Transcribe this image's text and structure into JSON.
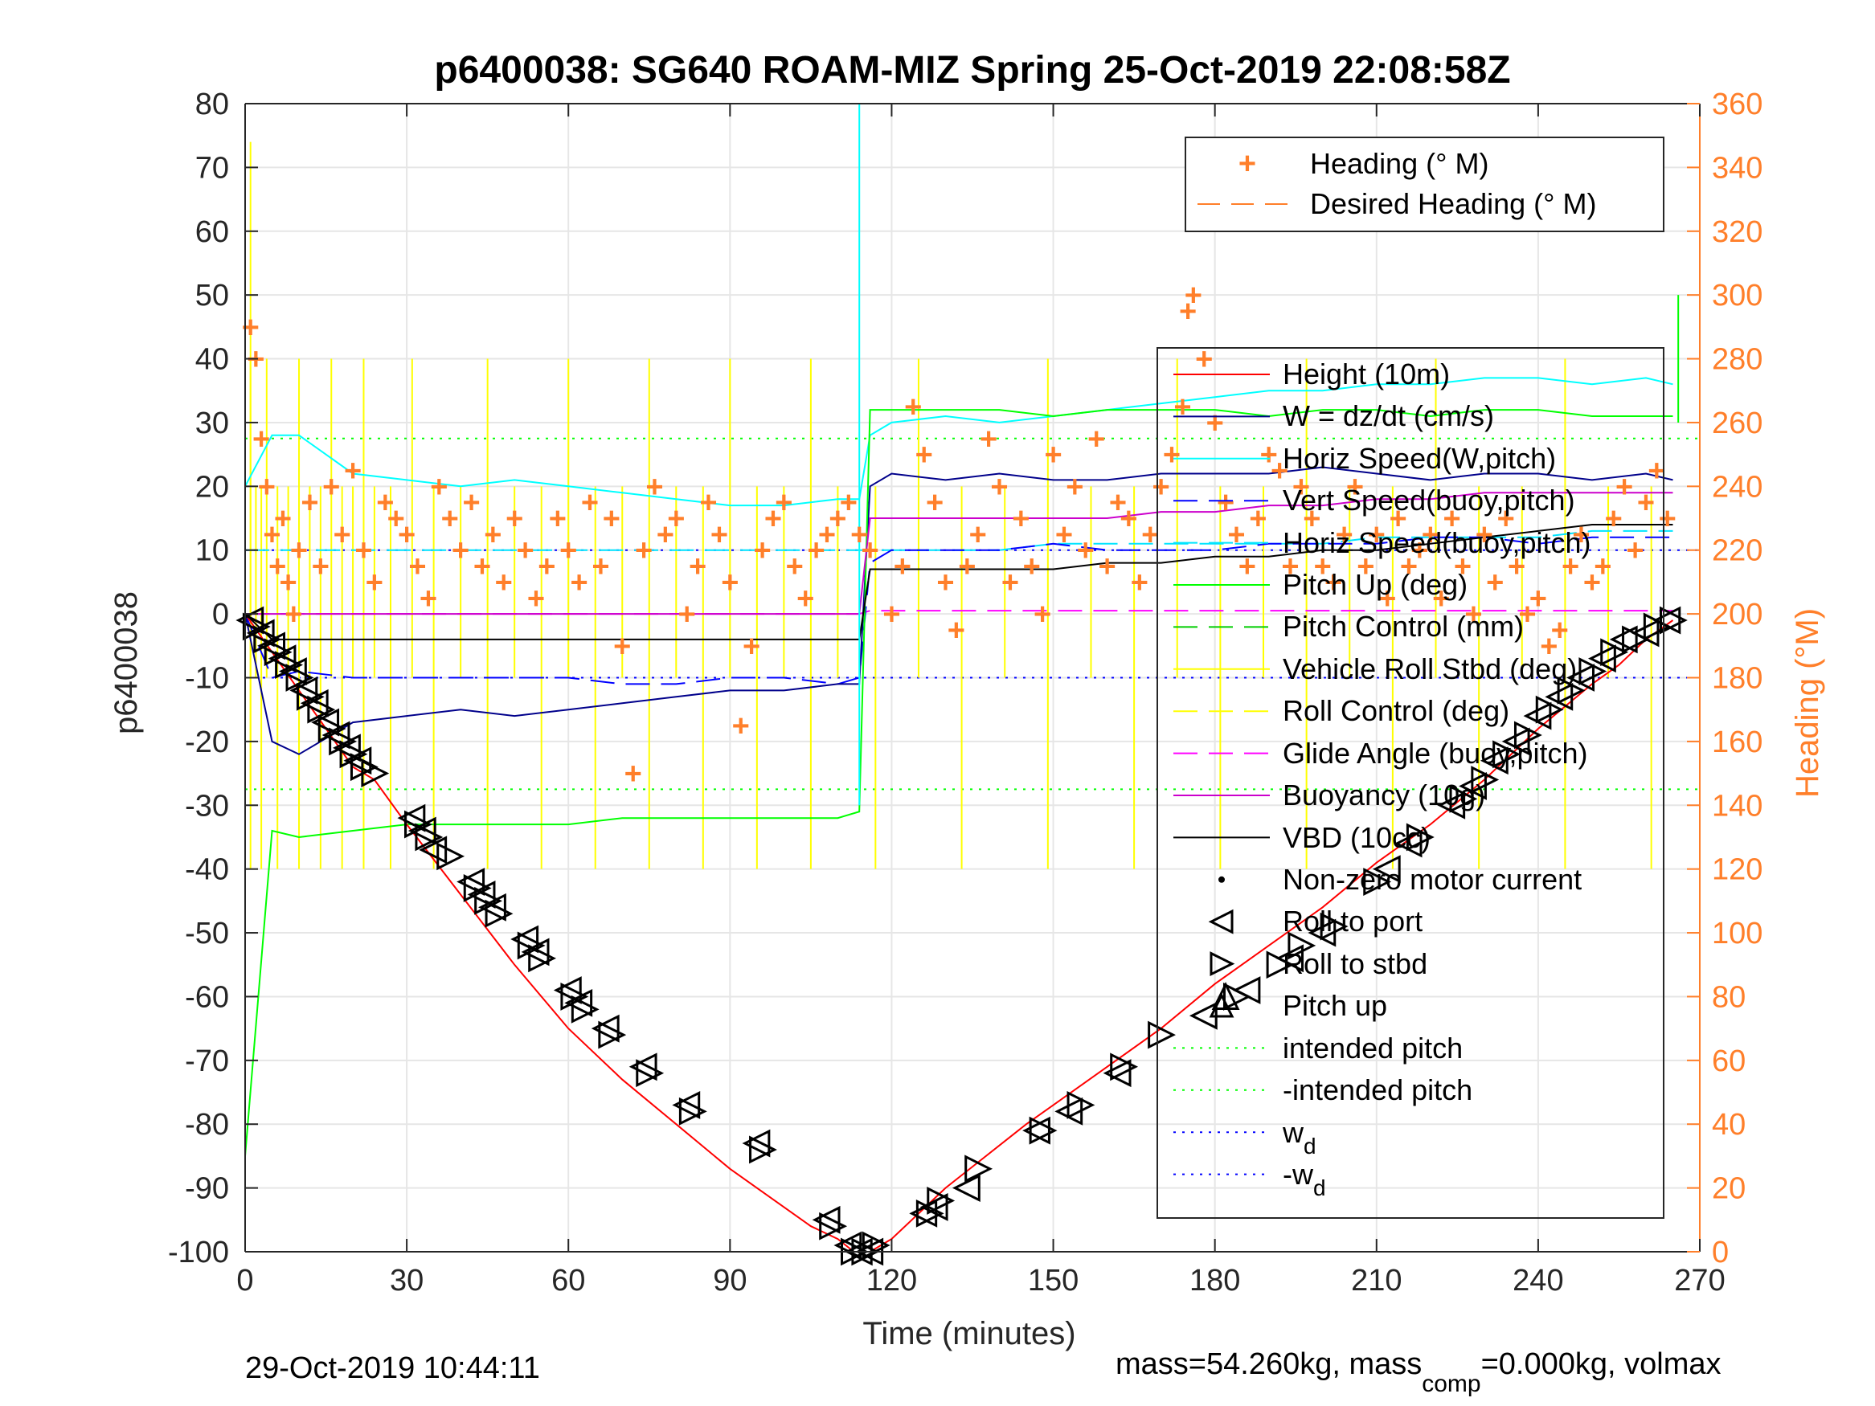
{
  "figure": {
    "title": "p6400038: SG640 ROAM-MIZ Spring 25-Oct-2019 22:08:58Z",
    "footer_left": "29-Oct-2019 10:44:11",
    "footer_right_prefix": "mass=54.260kg, mass",
    "footer_right_sub": "comp",
    "footer_right_suffix": "=0.000kg, volmax"
  },
  "colors": {
    "height": "#ff0000",
    "w": "#00008b",
    "horiz_speed_w": "#00ffff",
    "vert_speed_buoy": "#0000ff",
    "horiz_speed_buoy": "#00e5ff",
    "pitch_up": "#00ff00",
    "pitch_control": "#00cc00",
    "roll": "#ffff00",
    "roll_control": "#ffff00",
    "glide_angle": "#ff00ff",
    "buoyancy": "#cc00cc",
    "vbd": "#000000",
    "heading": "#ff7f2a",
    "grid": "#e6e6e6"
  },
  "chart_data": {
    "type": "line",
    "xlabel": "Time (minutes)",
    "ylabel": "p6400038",
    "y2label": "Heading (°M)",
    "xlim": [
      0,
      270
    ],
    "ylim": [
      -100,
      80
    ],
    "y2lim": [
      0,
      360
    ],
    "xticks": [
      0,
      30,
      60,
      90,
      120,
      150,
      180,
      210,
      240,
      270
    ],
    "yticks": [
      -100,
      -90,
      -80,
      -70,
      -60,
      -50,
      -40,
      -30,
      -20,
      -10,
      0,
      10,
      20,
      30,
      40,
      50,
      60,
      70,
      80
    ],
    "y2ticks": [
      0,
      20,
      40,
      60,
      80,
      100,
      120,
      140,
      160,
      180,
      200,
      220,
      240,
      260,
      280,
      300,
      320,
      340,
      360
    ],
    "grid": true,
    "legend_heading": [
      {
        "label": "Heading (° M)"
      },
      {
        "label": "Desired Heading (° M)"
      }
    ],
    "legend_main": [
      {
        "label": "Height (10m)"
      },
      {
        "label": "W = dz/dt (cm/s)"
      },
      {
        "label": "Horiz Speed(W,pitch)"
      },
      {
        "label": "Vert Speed(buoy,pitch)"
      },
      {
        "label": "Horiz Speed(buoy,pitch)"
      },
      {
        "label": "Pitch Up (deg)"
      },
      {
        "label": "Pitch Control (mm)"
      },
      {
        "label": "Vehicle Roll Stbd (deg)"
      },
      {
        "label": "Roll Control (deg)"
      },
      {
        "label": "Glide Angle (buoy,pitch)"
      },
      {
        "label": "Buoyancy (10g)"
      },
      {
        "label": "VBD (10cc)"
      },
      {
        "label": "Non-zero motor current"
      },
      {
        "label": "Roll to port"
      },
      {
        "label": "Roll to stbd"
      },
      {
        "label": "Pitch up"
      },
      {
        "label": "intended pitch"
      },
      {
        "label": "-intended pitch"
      },
      {
        "label": "w",
        "sub": "d"
      },
      {
        "label": "-w",
        "sub": "d"
      }
    ],
    "reference_lines": {
      "intended_pitch": 27.5,
      "neg_intended_pitch": -27.5,
      "wd": 10,
      "neg_wd": -10
    },
    "height": {
      "x": [
        0,
        5,
        10,
        15,
        20,
        24,
        30,
        40,
        50,
        60,
        70,
        80,
        90,
        100,
        105,
        110,
        113,
        116,
        120,
        125,
        130,
        136,
        145,
        150,
        160,
        170,
        180,
        190,
        200,
        210,
        220,
        230,
        240,
        250,
        255,
        260,
        265
      ],
      "y": [
        0,
        -6,
        -12,
        -18,
        -24,
        -26,
        -33,
        -44,
        -55,
        -65,
        -73,
        -80,
        -87,
        -93,
        -96,
        -98,
        -100,
        -100,
        -98,
        -94,
        -90,
        -86,
        -80,
        -77,
        -71,
        -65,
        -58,
        -52,
        -46,
        -39,
        -33,
        -26,
        -18,
        -11,
        -8,
        -4,
        -1
      ]
    },
    "roll_port_markers": {
      "x": [
        1,
        3,
        5,
        7,
        9,
        11,
        13,
        15,
        17,
        19,
        21,
        31,
        33,
        35,
        42,
        44,
        46,
        52,
        54,
        60,
        62,
        67,
        74,
        82,
        95,
        108,
        112,
        114,
        116,
        126,
        128,
        134,
        147,
        153,
        162,
        178,
        186,
        194,
        200,
        212,
        216,
        224,
        228,
        232,
        236,
        240,
        244,
        248,
        252,
        256,
        260,
        264
      ],
      "y": [
        -1,
        -3,
        -5,
        -7,
        -9,
        -12,
        -14,
        -17,
        -19,
        -21,
        -23,
        -32,
        -34,
        -37,
        -42,
        -44,
        -46,
        -51,
        -53,
        -59,
        -61,
        -65,
        -71,
        -77,
        -83,
        -95,
        -99,
        -100,
        -100,
        -94,
        -93,
        -90,
        -81,
        -78,
        -72,
        -63,
        -59,
        -54,
        -50,
        -40,
        -36,
        -30,
        -27,
        -23,
        -20,
        -16,
        -13,
        -10,
        -7,
        -4,
        -3,
        -1
      ]
    },
    "roll_stbd_markers": {
      "x": [
        2,
        4,
        6,
        8,
        10,
        12,
        14,
        16,
        18,
        20,
        22,
        24,
        32,
        34,
        38,
        43,
        45,
        47,
        53,
        55,
        61,
        63,
        68,
        75,
        83,
        96,
        109,
        113,
        115,
        117,
        127,
        129,
        136,
        148,
        155,
        163,
        170,
        184,
        192,
        196,
        202,
        210,
        218,
        226,
        230,
        234,
        238,
        242,
        246,
        250,
        254,
        258,
        262,
        265
      ],
      "y": [
        -2,
        -4,
        -6,
        -8,
        -10,
        -13,
        -15,
        -18,
        -20,
        -22,
        -24,
        -25,
        -33,
        -35,
        -38,
        -43,
        -45,
        -47,
        -52,
        -54,
        -60,
        -62,
        -66,
        -72,
        -78,
        -84,
        -96,
        -100,
        -100,
        -99,
        -94,
        -92,
        -87,
        -81,
        -77,
        -71,
        -66,
        -60,
        -55,
        -52,
        -49,
        -42,
        -35,
        -29,
        -26,
        -22,
        -19,
        -15,
        -12,
        -9,
        -6,
        -4,
        -2,
        -1
      ]
    },
    "pitch_up_markers": {
      "x": [
        182
      ],
      "y": [
        -60
      ]
    },
    "heading_points": {
      "x": [
        1,
        2,
        3,
        4,
        5,
        6,
        7,
        8,
        9,
        10,
        12,
        14,
        16,
        18,
        20,
        22,
        24,
        26,
        28,
        30,
        32,
        34,
        36,
        38,
        40,
        42,
        44,
        46,
        48,
        50,
        52,
        54,
        56,
        58,
        60,
        62,
        64,
        66,
        68,
        70,
        72,
        74,
        76,
        78,
        80,
        82,
        84,
        86,
        88,
        90,
        92,
        94,
        96,
        98,
        100,
        102,
        104,
        106,
        108,
        110,
        112,
        114,
        116,
        120,
        122,
        124,
        126,
        128,
        130,
        132,
        134,
        136,
        138,
        140,
        142,
        144,
        146,
        148,
        150,
        152,
        154,
        156,
        158,
        160,
        162,
        164,
        166,
        168,
        170,
        172,
        174,
        175,
        176,
        178,
        180,
        182,
        184,
        186,
        188,
        190,
        192,
        194,
        196,
        198,
        200,
        202,
        204,
        206,
        208,
        210,
        212,
        214,
        216,
        218,
        220,
        222,
        224,
        226,
        228,
        230,
        232,
        234,
        236,
        238,
        240,
        242,
        244,
        246,
        248,
        250,
        252,
        254,
        256,
        258,
        260,
        262,
        264
      ],
      "y": [
        290,
        280,
        255,
        240,
        225,
        215,
        230,
        210,
        200,
        220,
        235,
        215,
        240,
        225,
        245,
        220,
        210,
        235,
        230,
        225,
        215,
        205,
        240,
        230,
        220,
        235,
        215,
        225,
        210,
        230,
        220,
        205,
        215,
        230,
        220,
        210,
        235,
        215,
        230,
        190,
        150,
        220,
        240,
        225,
        230,
        200,
        215,
        235,
        225,
        210,
        165,
        190,
        220,
        230,
        235,
        215,
        205,
        220,
        225,
        230,
        235,
        225,
        220,
        200,
        215,
        265,
        250,
        235,
        210,
        195,
        215,
        225,
        255,
        240,
        210,
        230,
        215,
        200,
        250,
        225,
        240,
        220,
        255,
        215,
        235,
        230,
        210,
        225,
        240,
        250,
        265,
        295,
        300,
        280,
        260,
        235,
        225,
        215,
        230,
        250,
        245,
        215,
        240,
        230,
        215,
        210,
        225,
        240,
        215,
        225,
        205,
        230,
        215,
        220,
        225,
        205,
        230,
        215,
        200,
        225,
        210,
        230,
        215,
        200,
        205,
        190,
        195,
        215,
        225,
        210,
        215,
        230,
        240,
        220,
        235,
        245,
        230
      ]
    },
    "series_lines": {
      "x": [
        0,
        5,
        10,
        20,
        30,
        40,
        50,
        60,
        70,
        80,
        90,
        100,
        110,
        114,
        116,
        120,
        130,
        140,
        150,
        160,
        170,
        180,
        190,
        200,
        210,
        220,
        230,
        240,
        250,
        260,
        265
      ],
      "w": [
        0,
        -20,
        -22,
        -17,
        -16,
        -15,
        -16,
        -15,
        -14,
        -13,
        -12,
        -12,
        -11,
        -11,
        20,
        22,
        21,
        22,
        21,
        21,
        22,
        22,
        22,
        23,
        22,
        21,
        22,
        22,
        21,
        22,
        21
      ],
      "horiz_speed_w": [
        20,
        28,
        28,
        22,
        21,
        20,
        21,
        20,
        19,
        18,
        17,
        17,
        18,
        18,
        28,
        30,
        31,
        30,
        31,
        32,
        33,
        34,
        35,
        35,
        36,
        36,
        37,
        37,
        36,
        37,
        36
      ],
      "vert_speed_buoy": [
        0,
        -10,
        -9,
        -10,
        -10,
        -10,
        -10,
        -10,
        -11,
        -11,
        -10,
        -10,
        -11,
        -10,
        8,
        10,
        10,
        10,
        11,
        10,
        10,
        10,
        11,
        11,
        11,
        12,
        12,
        11,
        12,
        12,
        12
      ],
      "horiz_speed_buoy": [
        10,
        10,
        10,
        10,
        10,
        10,
        10,
        10,
        10,
        10,
        10,
        10,
        10,
        10,
        10,
        10,
        10,
        10,
        11,
        11,
        11,
        11,
        11,
        11,
        12,
        12,
        12,
        12,
        13,
        13,
        13
      ],
      "pitch_up": [
        -85,
        -34,
        -35,
        -34,
        -33,
        -33,
        -33,
        -33,
        -32,
        -32,
        -32,
        -32,
        -32,
        -31,
        32,
        32,
        32,
        32,
        31,
        32,
        32,
        32,
        31,
        32,
        32,
        31,
        32,
        32,
        31,
        31,
        31
      ],
      "buoyancy": [
        0,
        0,
        0,
        0,
        0,
        0,
        0,
        0,
        0,
        0,
        0,
        0,
        0,
        0,
        15,
        15,
        15,
        15,
        15,
        15,
        16,
        16,
        17,
        17,
        18,
        18,
        19,
        19,
        19,
        19,
        19
      ],
      "vbd": [
        0,
        -4,
        -4,
        -4,
        -4,
        -4,
        -4,
        -4,
        -4,
        -4,
        -4,
        -4,
        -4,
        -4,
        7,
        7,
        7,
        7,
        7,
        8,
        8,
        9,
        9,
        10,
        10,
        11,
        12,
        13,
        14,
        14,
        14
      ],
      "glide_angle": [
        0,
        0,
        0,
        0,
        0,
        0,
        0,
        0,
        0,
        0,
        0,
        0,
        0,
        0,
        0.5,
        0.5,
        0.5,
        0.5,
        0.5,
        0.5,
        0.5,
        0.5,
        0.5,
        0.5,
        0.5,
        0.5,
        0.5,
        0.5,
        0.5,
        0.5,
        0.5
      ]
    }
  }
}
